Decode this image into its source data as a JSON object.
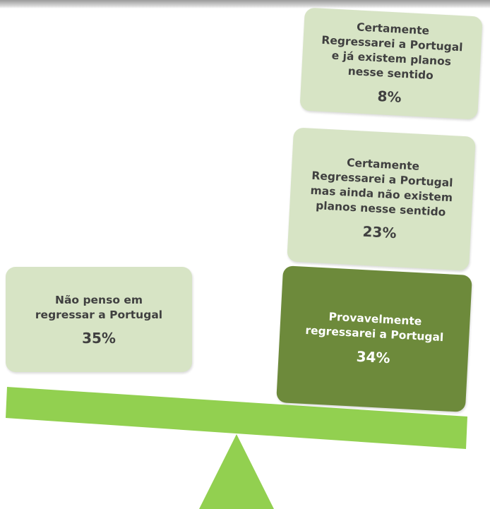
{
  "nodes": [
    {
      "lines": [
        "Certamente",
        "Regressarei a Portugal",
        "e já existem planos",
        "nesse sentido"
      ],
      "value": "8%"
    },
    {
      "lines": [
        "Certamente",
        "Regressarei a Portugal",
        "mas ainda não existem",
        "planos nesse sentido"
      ],
      "value": "23%"
    },
    {
      "lines": [
        "Provavelmente",
        "regressarei a Portugal"
      ],
      "value": "34%"
    },
    {
      "lines": [
        "Não penso em",
        "regressar a Portugal"
      ],
      "value": "35%"
    }
  ]
}
